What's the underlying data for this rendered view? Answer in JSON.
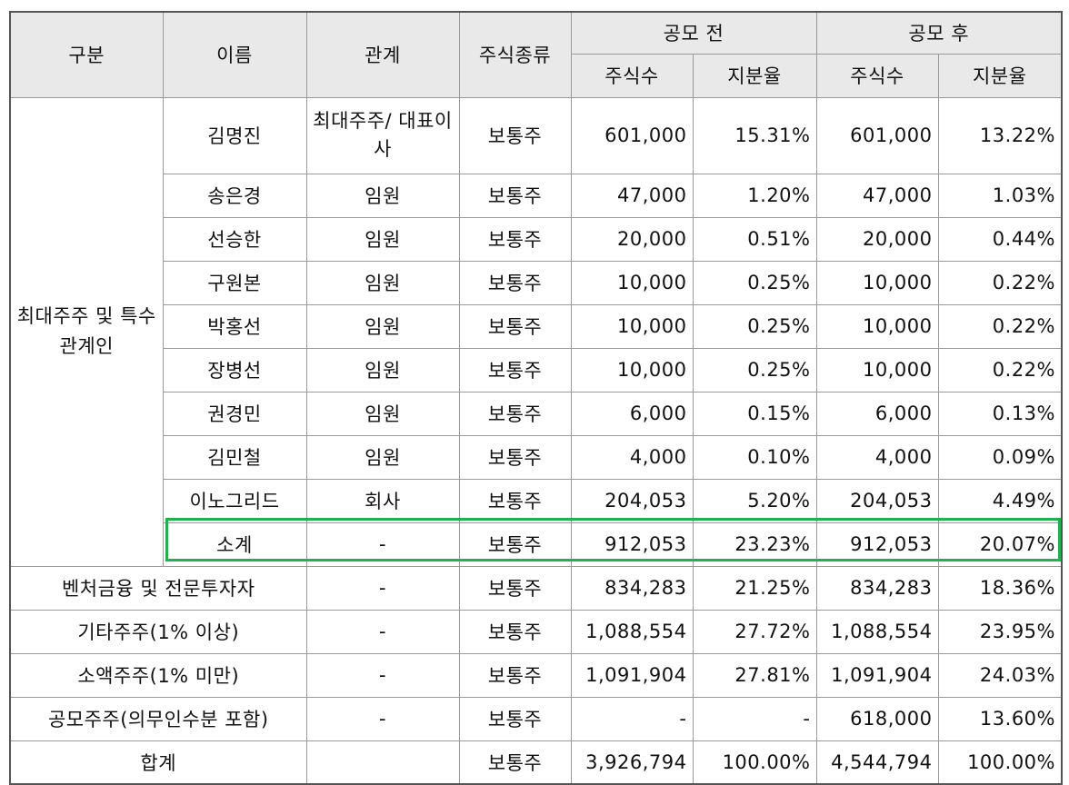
{
  "header": {
    "category": "구분",
    "name": "이름",
    "relation": "관계",
    "stock_type": "주식종류",
    "before_ipo": "공모 전",
    "after_ipo": "공모 후",
    "shares": "주식수",
    "ratio": "지분율"
  },
  "group_label": "최대주주 및 특수관계인",
  "insiders": [
    {
      "name": "김명진",
      "relation": "최대주주/ 대표이사",
      "type": "보통주",
      "pre_shares": "601,000",
      "pre_ratio": "15.31%",
      "post_shares": "601,000",
      "post_ratio": "13.22%"
    },
    {
      "name": "송은경",
      "relation": "임원",
      "type": "보통주",
      "pre_shares": "47,000",
      "pre_ratio": "1.20%",
      "post_shares": "47,000",
      "post_ratio": "1.03%"
    },
    {
      "name": "선승한",
      "relation": "임원",
      "type": "보통주",
      "pre_shares": "20,000",
      "pre_ratio": "0.51%",
      "post_shares": "20,000",
      "post_ratio": "0.44%"
    },
    {
      "name": "구원본",
      "relation": "임원",
      "type": "보통주",
      "pre_shares": "10,000",
      "pre_ratio": "0.25%",
      "post_shares": "10,000",
      "post_ratio": "0.22%"
    },
    {
      "name": "박홍선",
      "relation": "임원",
      "type": "보통주",
      "pre_shares": "10,000",
      "pre_ratio": "0.25%",
      "post_shares": "10,000",
      "post_ratio": "0.22%"
    },
    {
      "name": "장병선",
      "relation": "임원",
      "type": "보통주",
      "pre_shares": "10,000",
      "pre_ratio": "0.25%",
      "post_shares": "10,000",
      "post_ratio": "0.22%"
    },
    {
      "name": "권경민",
      "relation": "임원",
      "type": "보통주",
      "pre_shares": "6,000",
      "pre_ratio": "0.15%",
      "post_shares": "6,000",
      "post_ratio": "0.13%"
    },
    {
      "name": "김민철",
      "relation": "임원",
      "type": "보통주",
      "pre_shares": "4,000",
      "pre_ratio": "0.10%",
      "post_shares": "4,000",
      "post_ratio": "0.09%"
    },
    {
      "name": "이노그리드",
      "relation": "회사",
      "type": "보통주",
      "pre_shares": "204,053",
      "pre_ratio": "5.20%",
      "post_shares": "204,053",
      "post_ratio": "4.49%"
    },
    {
      "name": "소계",
      "relation": "-",
      "type": "보통주",
      "pre_shares": "912,053",
      "pre_ratio": "23.23%",
      "post_shares": "912,053",
      "post_ratio": "20.07%"
    }
  ],
  "others": [
    {
      "label": "벤처금융 및 전문투자자",
      "relation": "-",
      "type": "보통주",
      "pre_shares": "834,283",
      "pre_ratio": "21.25%",
      "post_shares": "834,283",
      "post_ratio": "18.36%"
    },
    {
      "label": "기타주주(1% 이상)",
      "relation": "-",
      "type": "보통주",
      "pre_shares": "1,088,554",
      "pre_ratio": "27.72%",
      "post_shares": "1,088,554",
      "post_ratio": "23.95%"
    },
    {
      "label": "소액주주(1% 미만)",
      "relation": "-",
      "type": "보통주",
      "pre_shares": "1,091,904",
      "pre_ratio": "27.81%",
      "post_shares": "1,091,904",
      "post_ratio": "24.03%"
    },
    {
      "label": "공모주주(의무인수분 포함)",
      "relation": "-",
      "type": "보통주",
      "pre_shares": "-",
      "pre_ratio": "-",
      "post_shares": "618,000",
      "post_ratio": "13.60%"
    }
  ],
  "total": {
    "label": "합계",
    "relation": "",
    "type": "보통주",
    "pre_shares": "3,926,794",
    "pre_ratio": "100.00%",
    "post_shares": "4,544,794",
    "post_ratio": "100.00%"
  },
  "colors": {
    "highlight_border": "#22b04e",
    "header_bg": "#e9e9e9",
    "grid": "#9a9a9a"
  }
}
